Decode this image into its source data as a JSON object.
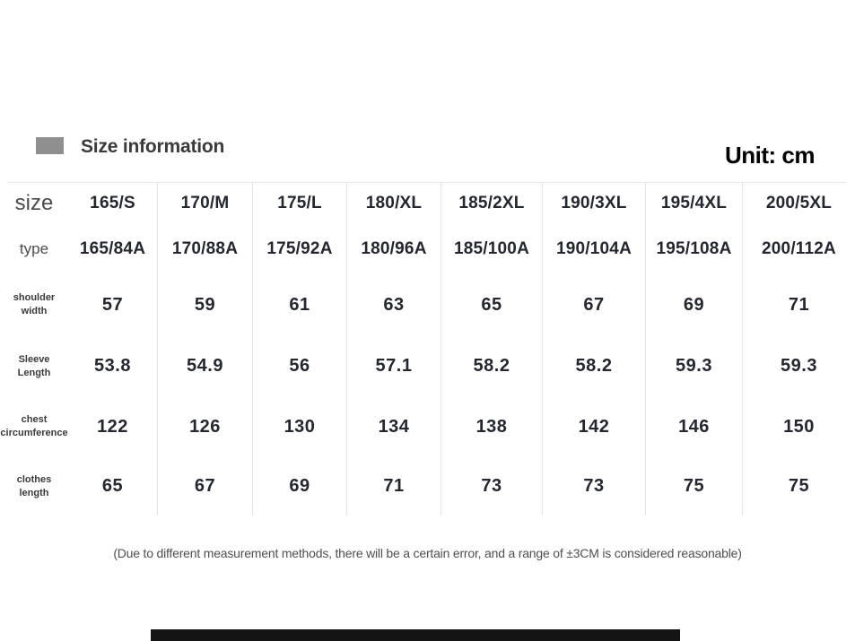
{
  "header": {
    "section_title": "Size information",
    "unit_label": "Unit: cm"
  },
  "table": {
    "row_labels": {
      "size": "size",
      "type": "type",
      "shoulder": "shoulder width",
      "sleeve": "Sleeve Length",
      "chest": "chest circumference",
      "clothes": "clothes length"
    },
    "columns": [
      "165/S",
      "170/M",
      "175/L",
      "180/XL",
      "185/2XL",
      "190/3XL",
      "195/4XL",
      "200/5XL"
    ],
    "types": [
      "165/84A",
      "170/88A",
      "175/92A",
      "180/96A",
      "185/100A",
      "190/104A",
      "195/108A",
      "200/112A"
    ],
    "shoulder_width": [
      57,
      59,
      61,
      63,
      65,
      67,
      69,
      71
    ],
    "sleeve_length": [
      53.8,
      54.9,
      56,
      57.1,
      58.2,
      58.2,
      59.3,
      59.3
    ],
    "chest_circumference": [
      122,
      126,
      130,
      134,
      138,
      142,
      146,
      150
    ],
    "clothes_length": [
      65,
      67,
      69,
      71,
      73,
      73,
      75,
      75
    ]
  },
  "footnote": "(Due to different measurement methods, there will be a certain error, and a range of ±3CM is considered reasonable)",
  "colors": {
    "swatch": "#8f8f8f",
    "data_text": "#25272f",
    "label_gray": "#4c4c4c",
    "divider": "#e4e4e4",
    "bottom_bar": "#141414"
  }
}
